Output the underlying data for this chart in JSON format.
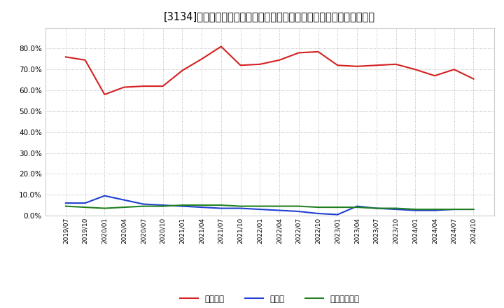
{
  "title": "[3134]　自己資本、のれん、繰延税金資産の総資産に対する比率の推移",
  "x_labels": [
    "2019/07",
    "2019/10",
    "2020/01",
    "2020/04",
    "2020/07",
    "2020/10",
    "2021/01",
    "2021/04",
    "2021/07",
    "2021/10",
    "2022/01",
    "2022/04",
    "2022/07",
    "2022/10",
    "2023/01",
    "2023/04",
    "2023/07",
    "2023/10",
    "2024/01",
    "2024/04",
    "2024/07",
    "2024/10"
  ],
  "jiko_shihon": [
    76.0,
    74.5,
    58.0,
    61.5,
    62.0,
    62.0,
    69.5,
    75.0,
    81.0,
    72.0,
    72.5,
    74.5,
    78.0,
    78.5,
    72.0,
    71.5,
    72.0,
    72.5,
    70.0,
    67.0,
    70.0,
    65.5
  ],
  "noren": [
    6.0,
    6.0,
    9.5,
    7.5,
    5.5,
    5.0,
    4.5,
    4.0,
    3.5,
    3.5,
    3.0,
    2.5,
    2.0,
    1.0,
    0.5,
    4.5,
    3.5,
    3.0,
    2.5,
    2.5,
    3.0,
    3.0
  ],
  "kurinobe_zeikin": [
    4.5,
    4.0,
    3.5,
    4.0,
    4.5,
    4.5,
    5.0,
    5.0,
    5.0,
    4.5,
    4.5,
    4.5,
    4.5,
    4.0,
    4.0,
    4.0,
    3.5,
    3.5,
    3.0,
    3.0,
    3.0,
    3.0
  ],
  "jiko_color": "#d42020",
  "noren_color": "#2040d0",
  "kurinobe_color": "#208020",
  "legend_labels": [
    "自己資本",
    "のれん",
    "繰延税金資産"
  ],
  "ylim": [
    0,
    90
  ],
  "yticks": [
    0,
    10,
    20,
    30,
    40,
    50,
    60,
    70,
    80
  ],
  "background_color": "#ffffff",
  "plot_bg_color": "#ffffff",
  "grid_color": "#aaaaaa",
  "title_fontsize": 10.5
}
